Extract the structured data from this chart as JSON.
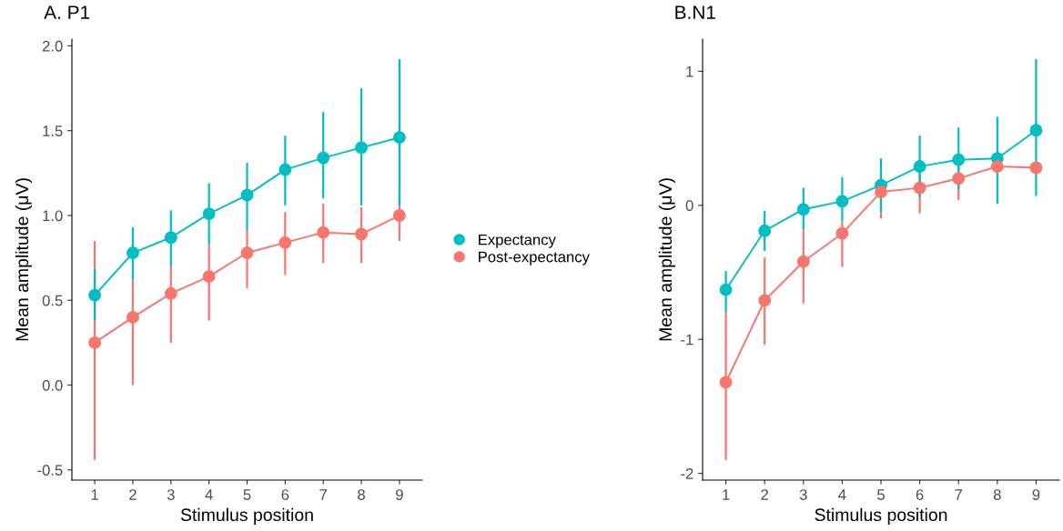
{
  "chart_data": [
    {
      "type": "line",
      "title": "A. P1",
      "xlabel": "Stimulus position",
      "ylabel": "Mean amplitude (μV)",
      "categories": [
        "1",
        "2",
        "3",
        "4",
        "5",
        "6",
        "7",
        "8",
        "9"
      ],
      "ylim": [
        -0.56,
        2.04
      ],
      "yticks": [
        {
          "value": -0.5,
          "label": "-0.5"
        },
        {
          "value": 0,
          "label": "0.0"
        },
        {
          "value": 0.5,
          "label": "0.5"
        },
        {
          "value": 1,
          "label": "1.0"
        },
        {
          "value": 1.5,
          "label": "1.5"
        },
        {
          "value": 2,
          "label": "2.0"
        }
      ],
      "grid": false,
      "legend": "right",
      "marker": "circle",
      "line_style": "solid",
      "series": [
        {
          "name": "Expectancy",
          "color": "#00bfc4",
          "values": [
            0.53,
            0.78,
            0.87,
            1.01,
            1.12,
            1.27,
            1.34,
            1.4,
            1.46
          ],
          "errors": [
            [
              0.38,
              0.68
            ],
            [
              0.62,
              0.93
            ],
            [
              0.7,
              1.03
            ],
            [
              0.83,
              1.19
            ],
            [
              0.91,
              1.31
            ],
            [
              1.06,
              1.47
            ],
            [
              1.1,
              1.61
            ],
            [
              1.06,
              1.75
            ],
            [
              1.06,
              1.92
            ]
          ]
        },
        {
          "name": "Post-expectancy",
          "color": "#f8766d",
          "values": [
            0.25,
            0.4,
            0.54,
            0.64,
            0.78,
            0.84,
            0.9,
            0.89,
            1.0
          ],
          "errors": [
            [
              -0.44,
              0.85
            ],
            [
              0.0,
              0.62
            ],
            [
              0.25,
              0.7
            ],
            [
              0.38,
              0.83
            ],
            [
              0.57,
              0.91
            ],
            [
              0.65,
              1.02
            ],
            [
              0.72,
              1.07
            ],
            [
              0.72,
              1.05
            ],
            [
              0.85,
              1.15
            ]
          ]
        }
      ]
    },
    {
      "type": "line",
      "title": "B.N1",
      "xlabel": "Stimulus position",
      "ylabel": "Mean amplitude (μV)",
      "categories": [
        "1",
        "2",
        "3",
        "4",
        "5",
        "6",
        "7",
        "8",
        "9"
      ],
      "ylim": [
        -2.05,
        1.24
      ],
      "yticks": [
        -2,
        -1,
        0,
        1
      ],
      "grid": false,
      "marker": "circle",
      "line_style": "solid",
      "series": [
        {
          "color": "#00bfc4",
          "values": [
            -0.63,
            -0.19,
            -0.03,
            0.03,
            0.15,
            0.29,
            0.34,
            0.35,
            0.56
          ],
          "errors": [
            [
              -0.8,
              -0.49
            ],
            [
              -0.34,
              -0.04
            ],
            [
              -0.18,
              0.13
            ],
            [
              -0.12,
              0.21
            ],
            [
              -0.05,
              0.35
            ],
            [
              0.06,
              0.52
            ],
            [
              0.12,
              0.58
            ],
            [
              0.01,
              0.66
            ],
            [
              0.07,
              1.09
            ]
          ]
        },
        {
          "color": "#f8766d",
          "values": [
            -1.32,
            -0.71,
            -0.42,
            -0.21,
            0.1,
            0.13,
            0.2,
            0.29,
            0.28
          ],
          "errors": [
            [
              -1.9,
              -0.8
            ],
            [
              -1.04,
              -0.39
            ],
            [
              -0.73,
              -0.18
            ],
            [
              -0.46,
              -0.12
            ],
            [
              -0.1,
              0.3
            ],
            [
              -0.06,
              0.33
            ],
            [
              0.04,
              0.36
            ],
            null,
            null
          ]
        }
      ]
    }
  ]
}
